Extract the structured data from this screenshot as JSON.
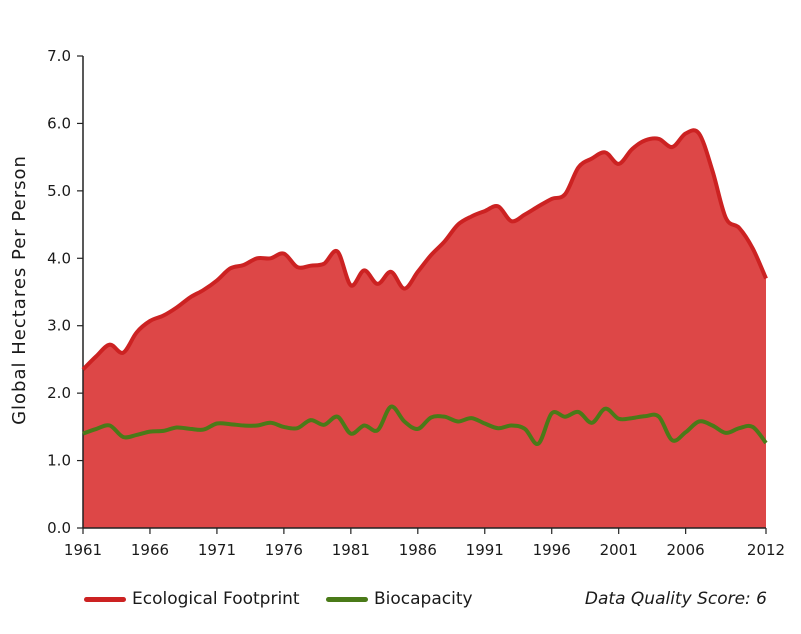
{
  "chart_data": {
    "type": "area",
    "title": "",
    "xlabel": "",
    "ylabel": "Global Hectares Per Person",
    "ylim": [
      0,
      7
    ],
    "yticks": [
      "0.0",
      "1.0",
      "2.0",
      "3.0",
      "4.0",
      "5.0",
      "6.0",
      "7.0"
    ],
    "xlim": [
      1961,
      2012
    ],
    "xticks": [
      "1961",
      "1966",
      "1971",
      "1976",
      "1981",
      "1986",
      "1991",
      "1996",
      "2001",
      "2006",
      "2012"
    ],
    "grid": false,
    "legend_position": "bottom",
    "x": [
      1961,
      1962,
      1963,
      1964,
      1965,
      1966,
      1967,
      1968,
      1969,
      1970,
      1971,
      1972,
      1973,
      1974,
      1975,
      1976,
      1977,
      1978,
      1979,
      1980,
      1981,
      1982,
      1983,
      1984,
      1985,
      1986,
      1987,
      1988,
      1989,
      1990,
      1991,
      1992,
      1993,
      1994,
      1995,
      1996,
      1997,
      1998,
      1999,
      2000,
      2001,
      2002,
      2003,
      2004,
      2005,
      2006,
      2007,
      2008,
      2009,
      2010,
      2011,
      2012
    ],
    "series": [
      {
        "name": "Ecological Footprint",
        "color": "#cc2222",
        "fill": "#dd4747",
        "values": [
          2.35,
          2.55,
          2.72,
          2.6,
          2.9,
          3.07,
          3.15,
          3.27,
          3.42,
          3.53,
          3.67,
          3.85,
          3.9,
          4.0,
          4.0,
          4.07,
          3.87,
          3.89,
          3.92,
          4.1,
          3.6,
          3.82,
          3.62,
          3.8,
          3.55,
          3.8,
          4.05,
          4.25,
          4.5,
          4.62,
          4.7,
          4.77,
          4.55,
          4.65,
          4.77,
          4.88,
          4.95,
          5.35,
          5.48,
          5.57,
          5.4,
          5.62,
          5.75,
          5.77,
          5.65,
          5.85,
          5.85,
          5.3,
          4.6,
          4.45,
          4.15,
          3.7
        ]
      },
      {
        "name": "Biocapacity",
        "color": "#4a7a18",
        "values": [
          1.4,
          1.47,
          1.52,
          1.35,
          1.38,
          1.43,
          1.44,
          1.49,
          1.47,
          1.46,
          1.55,
          1.54,
          1.52,
          1.52,
          1.56,
          1.5,
          1.48,
          1.6,
          1.53,
          1.65,
          1.4,
          1.52,
          1.45,
          1.8,
          1.58,
          1.47,
          1.64,
          1.65,
          1.58,
          1.63,
          1.55,
          1.48,
          1.52,
          1.47,
          1.25,
          1.7,
          1.65,
          1.72,
          1.56,
          1.77,
          1.62,
          1.63,
          1.66,
          1.65,
          1.3,
          1.42,
          1.58,
          1.52,
          1.41,
          1.48,
          1.5,
          1.26
        ]
      }
    ],
    "annotation": "Data Quality Score: 6"
  }
}
